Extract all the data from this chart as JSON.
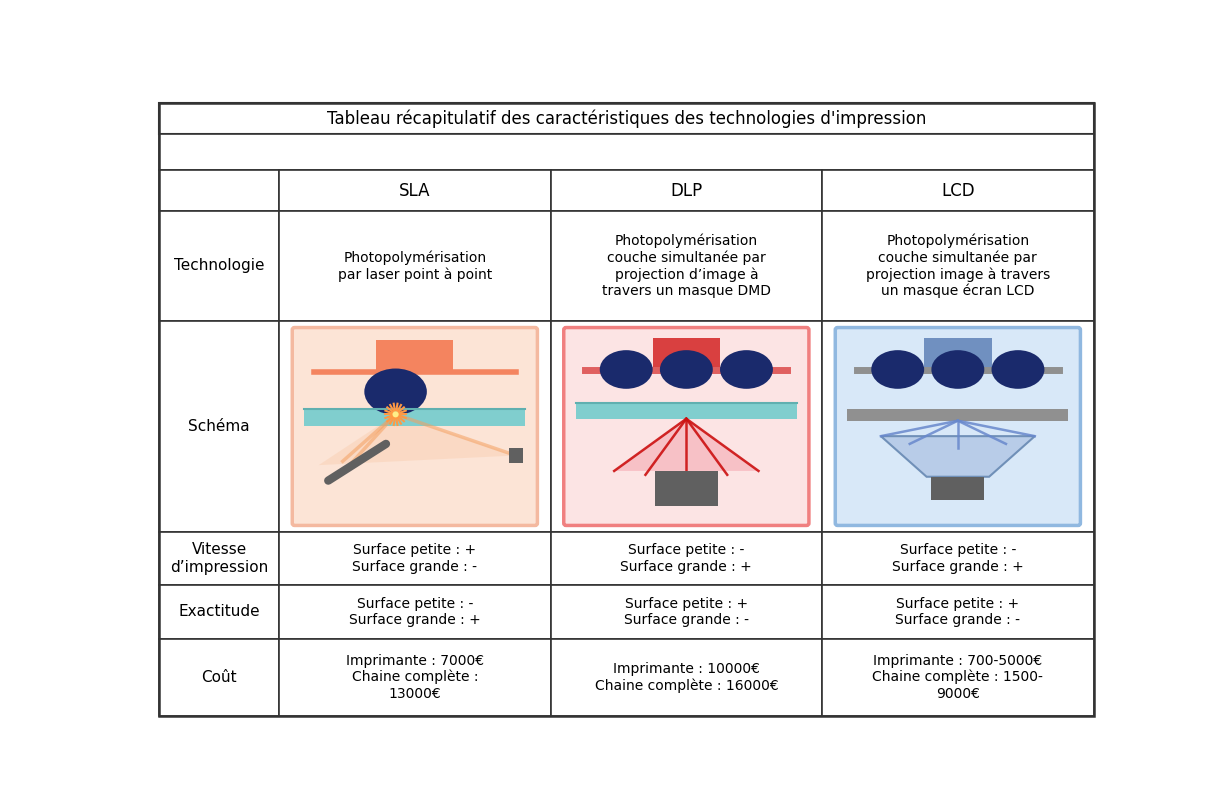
{
  "title": "Tableau récapitulatif des caractéristiques des technologies d'impression",
  "col_headers": [
    "SLA",
    "DLP",
    "LCD"
  ],
  "row_headers": [
    "",
    "Technologie",
    "Schéma",
    "Vitesse\nd’impression",
    "Exactitude",
    "Coût"
  ],
  "tech_texts": [
    "Photopolymérisation\npar laser point à point",
    "Photopolymérisation\ncouche simultanée par\nprojection d’image à\ntravers un masque DMD",
    "Photopolymérisation\ncouche simultanée par\nprojection image à travers\nun masque écran LCD"
  ],
  "vitesse_texts": [
    "Surface petite : +\nSurface grande : -",
    "Surface petite : -\nSurface grande : +",
    "Surface petite : -\nSurface grande : +"
  ],
  "exactitude_texts": [
    "Surface petite : -\nSurface grande : +",
    "Surface petite : +\nSurface grande : -",
    "Surface petite : +\nSurface grande : -"
  ],
  "cout_texts": [
    "Imprimante : 7000€\nChaine complète :\n13000€",
    "Imprimante : 10000€\nChaine complète : 16000€",
    "Imprimante : 700-5000€\nChaine complète : 1500-\n9000€"
  ],
  "bg_color": "#ffffff",
  "border_color": "#333333",
  "sla_box_fill": "#fce4d6",
  "sla_box_border": "#f4b9a0",
  "dlp_box_fill": "#fce4e4",
  "dlp_box_border": "#f08080",
  "lcd_box_fill": "#d8e8f8",
  "lcd_box_border": "#90b8e0",
  "orange_rect": "#f4845f",
  "orange_line": "#f4a060",
  "red_rect": "#d94040",
  "red_bar": "#e06060",
  "blue_rect": "#7090c0",
  "dark_blue": "#1a2a6c",
  "teal_color": "#80cece",
  "teal_line": "#60b0b0",
  "gray_dark": "#606060",
  "gray_med": "#888888",
  "lcd_funnel_fill": "#b8cce8",
  "lcd_funnel_edge": "#7090b8",
  "lcd_shelf_color": "#909090"
}
